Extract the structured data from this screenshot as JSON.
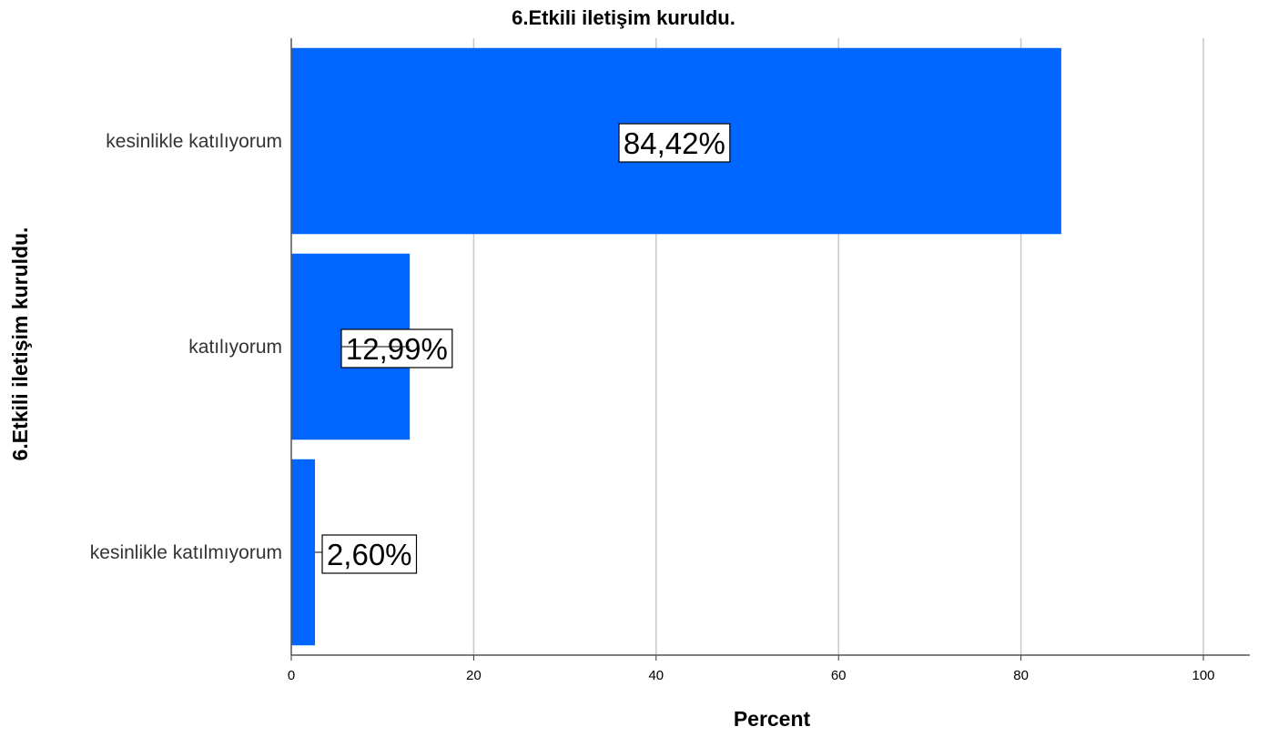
{
  "chart_data": {
    "type": "bar",
    "orientation": "horizontal",
    "title": "6.Etkili iletişim kuruldu.",
    "xlabel": "Percent",
    "ylabel": "6.Etkili iletişim kuruldu.",
    "categories": [
      "kesinlikle katılıyorum",
      "katılıyorum",
      "kesinlikle katılmıyorum"
    ],
    "values": [
      84.42,
      12.99,
      2.6
    ],
    "data_labels": [
      "84,42%",
      "12,99%",
      "2,60%"
    ],
    "xlim": [
      0,
      105
    ],
    "xticks": [
      0,
      20,
      40,
      60,
      80,
      100
    ],
    "grid": true,
    "bar_color": "#0066ff",
    "grid_color": "#c8c8c8"
  }
}
